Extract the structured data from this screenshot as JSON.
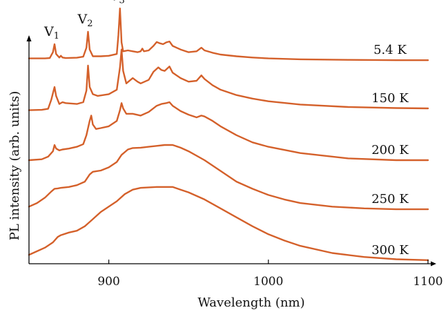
{
  "chart_data": {
    "type": "line",
    "title": "",
    "xlabel": "Wavelength (nm)",
    "ylabel": "PL intensity (arb. units)",
    "xlim": [
      850,
      1100
    ],
    "ylim": [
      0,
      14
    ],
    "xticks": [
      900,
      1000,
      1100
    ],
    "y_ticks_shown": false,
    "grid": false,
    "line_color": "#d4602a",
    "peak_labels": [
      {
        "main": "V",
        "sub": "1",
        "x": 866
      },
      {
        "main": "V",
        "sub": "2",
        "x": 887
      },
      {
        "main": "V",
        "sub": "3",
        "x": 907
      }
    ],
    "series": [
      {
        "name": "5.4 K",
        "x": [
          850,
          860,
          863,
          865,
          866,
          867,
          869,
          870,
          871,
          873,
          880,
          884,
          886,
          887,
          888,
          890,
          895,
          900,
          905,
          906,
          907,
          908,
          909,
          912,
          915,
          918,
          920,
          921,
          922,
          925,
          928,
          930,
          932,
          934,
          936,
          938,
          940,
          945,
          950,
          955,
          958,
          960,
          965,
          970,
          980,
          990,
          1000,
          1020,
          1050,
          1080,
          1100
        ],
        "y": [
          11.5,
          11.5,
          11.52,
          11.85,
          12.3,
          11.75,
          11.55,
          11.65,
          11.55,
          11.52,
          11.54,
          11.6,
          12.1,
          13.0,
          12.0,
          11.62,
          11.62,
          11.65,
          11.75,
          12.8,
          14.3,
          12.4,
          11.9,
          11.95,
          11.9,
          11.85,
          11.9,
          12.05,
          11.9,
          11.95,
          12.2,
          12.42,
          12.35,
          12.3,
          12.4,
          12.45,
          12.2,
          12.0,
          11.85,
          11.9,
          12.1,
          11.95,
          11.82,
          11.72,
          11.62,
          11.55,
          11.5,
          11.45,
          11.42,
          11.4,
          11.4
        ]
      },
      {
        "name": "150 K",
        "x": [
          850,
          858,
          862,
          864,
          866,
          867,
          869,
          871,
          873,
          880,
          884,
          886,
          887,
          888,
          890,
          893,
          900,
          905,
          907,
          908,
          909,
          911,
          915,
          918,
          920,
          925,
          928,
          931,
          933,
          935,
          938,
          940,
          945,
          950,
          955,
          958,
          960,
          965,
          970,
          980,
          990,
          1000,
          1020,
          1050,
          1080,
          1100
        ],
        "y": [
          8.6,
          8.62,
          8.68,
          9.2,
          9.9,
          9.4,
          8.95,
          9.05,
          9.0,
          8.95,
          9.05,
          9.7,
          11.1,
          9.9,
          9.5,
          9.4,
          9.5,
          9.75,
          11.0,
          12.0,
          10.8,
          10.1,
          10.4,
          10.2,
          10.1,
          10.3,
          10.75,
          11.0,
          10.85,
          10.8,
          11.05,
          10.7,
          10.4,
          10.2,
          10.25,
          10.55,
          10.35,
          10.0,
          9.75,
          9.45,
          9.25,
          9.1,
          8.92,
          8.78,
          8.72,
          8.7
        ]
      },
      {
        "name": "200 K",
        "x": [
          850,
          858,
          862,
          865,
          866,
          867,
          869,
          871,
          875,
          880,
          884,
          886,
          888,
          889,
          890,
          892,
          895,
          900,
          905,
          907,
          908,
          909,
          911,
          915,
          920,
          925,
          930,
          933,
          936,
          938,
          940,
          945,
          950,
          955,
          958,
          960,
          965,
          970,
          980,
          990,
          1000,
          1020,
          1050,
          1080,
          1100
        ],
        "y": [
          5.8,
          5.85,
          6.0,
          6.3,
          6.65,
          6.45,
          6.35,
          6.4,
          6.45,
          6.55,
          6.7,
          7.2,
          8.0,
          8.3,
          7.8,
          7.55,
          7.6,
          7.7,
          8.0,
          8.6,
          9.0,
          8.7,
          8.4,
          8.4,
          8.3,
          8.5,
          8.85,
          8.95,
          9.0,
          9.05,
          8.85,
          8.55,
          8.35,
          8.2,
          8.3,
          8.25,
          8.0,
          7.7,
          7.2,
          6.8,
          6.55,
          6.2,
          5.9,
          5.8,
          5.8
        ]
      },
      {
        "name": "250 K",
        "x": [
          850,
          855,
          860,
          864,
          866,
          868,
          870,
          875,
          880,
          885,
          888,
          890,
          892,
          895,
          900,
          905,
          908,
          912,
          915,
          920,
          925,
          930,
          935,
          940,
          945,
          950,
          960,
          970,
          980,
          990,
          1000,
          1010,
          1020,
          1040,
          1060,
          1080,
          1100
        ],
        "y": [
          3.2,
          3.4,
          3.7,
          4.05,
          4.2,
          4.22,
          4.25,
          4.3,
          4.4,
          4.6,
          5.0,
          5.15,
          5.18,
          5.22,
          5.4,
          5.7,
          6.1,
          6.4,
          6.48,
          6.5,
          6.55,
          6.6,
          6.65,
          6.65,
          6.5,
          6.3,
          5.8,
          5.2,
          4.6,
          4.2,
          3.85,
          3.6,
          3.4,
          3.2,
          3.1,
          3.05,
          3.05
        ]
      },
      {
        "name": "300 K",
        "x": [
          850,
          855,
          860,
          865,
          868,
          870,
          875,
          880,
          885,
          890,
          895,
          900,
          905,
          910,
          915,
          920,
          930,
          940,
          945,
          950,
          960,
          970,
          980,
          990,
          1000,
          1010,
          1020,
          1040,
          1060,
          1080,
          1100
        ],
        "y": [
          0.5,
          0.7,
          0.9,
          1.2,
          1.5,
          1.6,
          1.75,
          1.85,
          2.1,
          2.5,
          2.9,
          3.2,
          3.5,
          3.9,
          4.15,
          4.25,
          4.3,
          4.3,
          4.15,
          4.0,
          3.6,
          3.1,
          2.6,
          2.1,
          1.65,
          1.3,
          1.0,
          0.6,
          0.38,
          0.25,
          0.2
        ]
      }
    ]
  }
}
